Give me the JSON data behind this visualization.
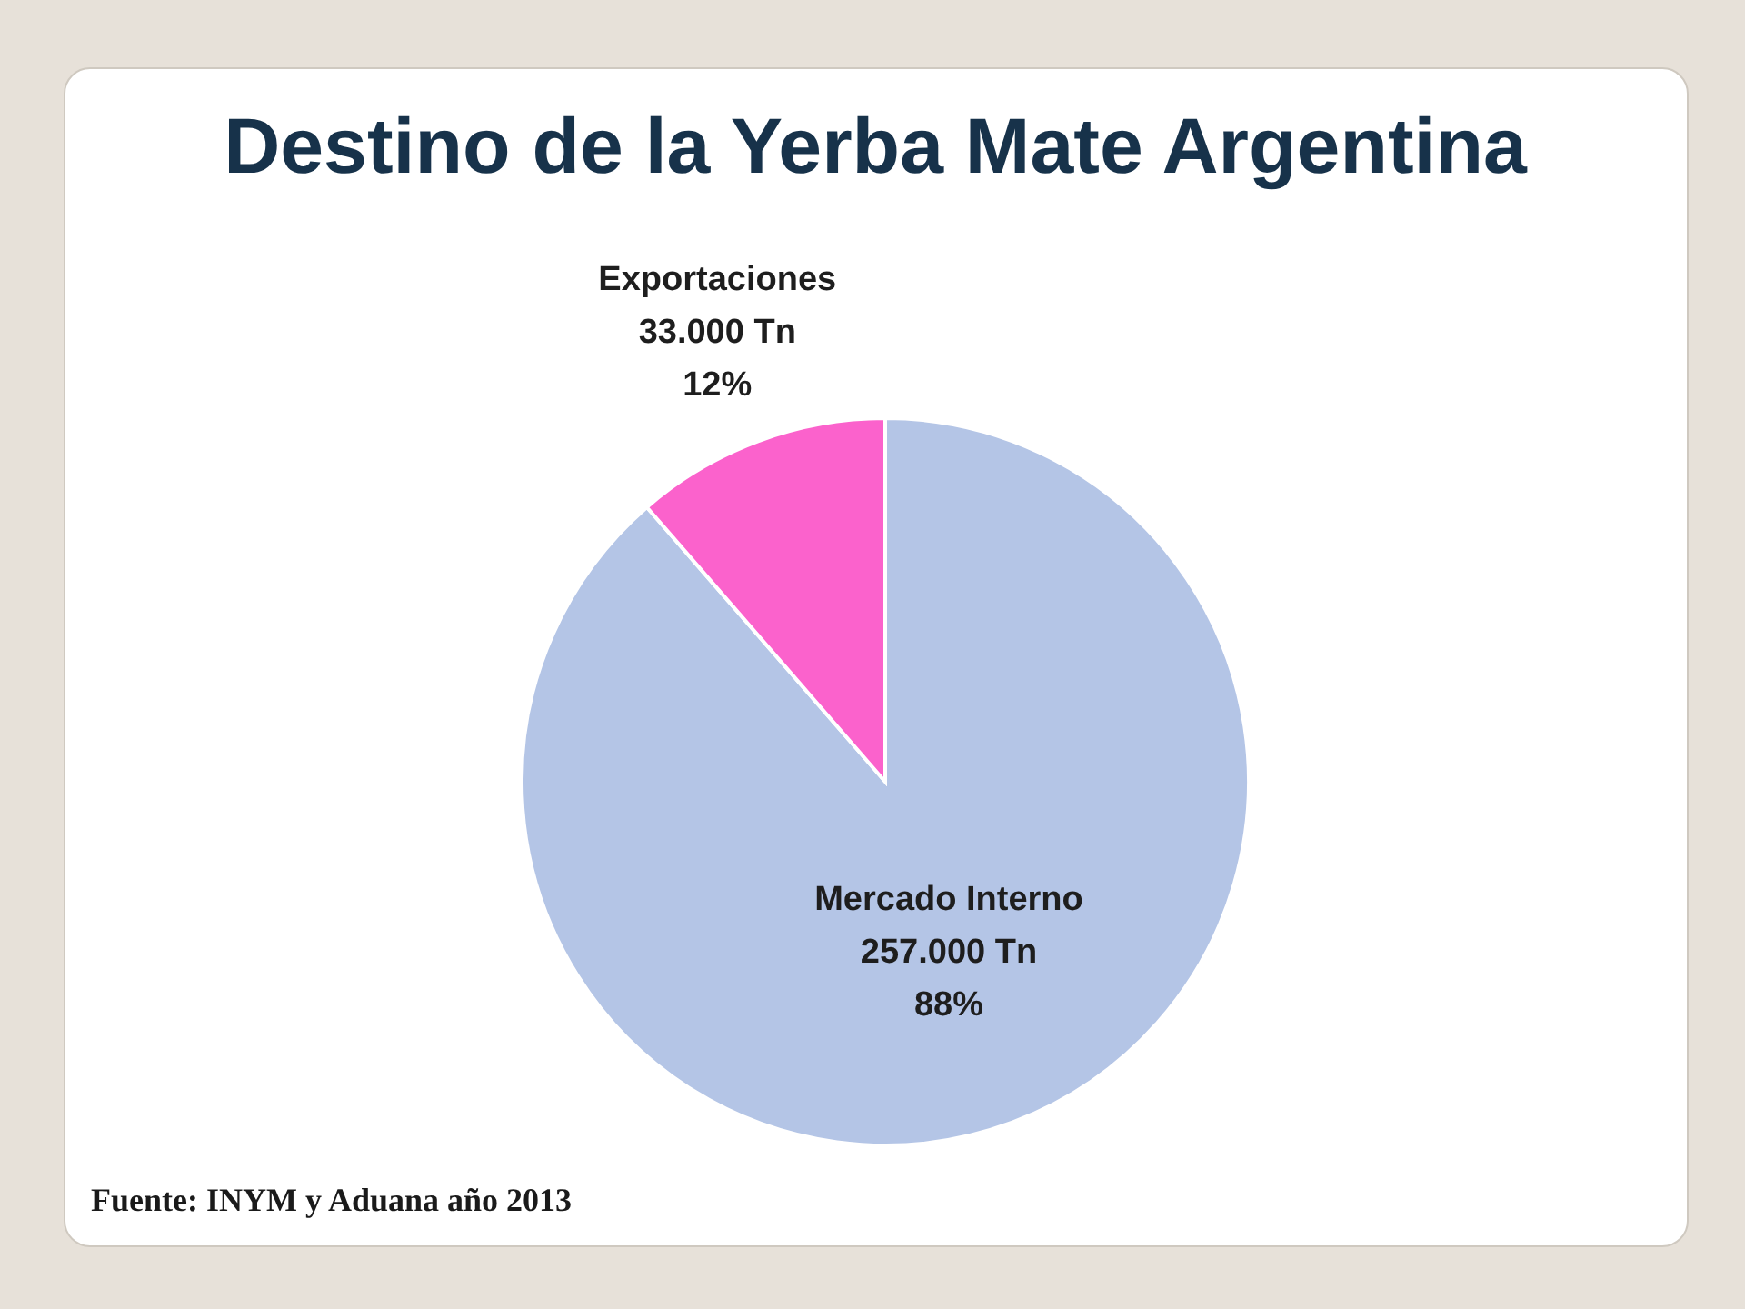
{
  "chart_data": {
    "type": "pie",
    "title": "Destino de la Yerba Mate Argentina",
    "categories": [
      "Mercado Interno",
      "Exportaciones"
    ],
    "values": [
      257000,
      33000
    ],
    "colors": [
      "#b4c5e6",
      "#fb62cc"
    ],
    "value_labels": [
      "257.000 Tn\n88%",
      "33.000 Tn\n12%"
    ],
    "annotations": [
      "Fuente: INYM y Aduana año 2013"
    ]
  }
}
